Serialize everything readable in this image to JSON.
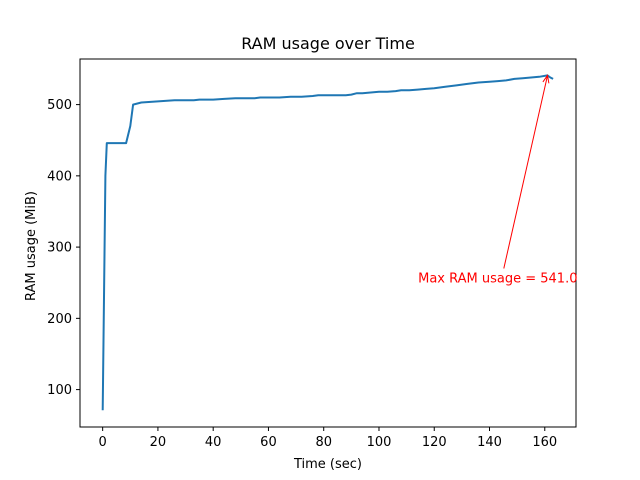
{
  "chart_data": {
    "type": "line",
    "title": "RAM usage over Time",
    "xlabel": "Time (sec)",
    "ylabel": "RAM usage (MiB)",
    "xlim": [
      -8.2,
      171.3
    ],
    "ylim": [
      47.5,
      564.0
    ],
    "xticks": [
      0,
      20,
      40,
      60,
      80,
      100,
      120,
      140,
      160
    ],
    "yticks": [
      100,
      200,
      300,
      400,
      500
    ],
    "grid": false,
    "line_color": "#1f77b4",
    "series": [
      {
        "x": [
          0,
          1,
          1.5,
          3,
          5,
          8,
          8.5,
          10,
          11,
          14,
          18,
          22,
          26,
          30,
          33,
          35,
          37,
          40,
          44,
          48,
          52,
          55,
          57,
          60,
          64,
          68,
          72,
          76,
          78,
          82,
          86,
          88,
          90,
          92,
          94,
          97,
          100,
          103,
          106,
          108,
          111,
          114,
          117,
          120,
          124,
          128,
          132,
          136,
          140,
          143,
          146,
          149,
          152,
          155,
          158,
          161,
          162,
          163
        ],
        "y": [
          71,
          400,
          446,
          446,
          446,
          446,
          446,
          470,
          500,
          503,
          504,
          505,
          506,
          506,
          506,
          507,
          507,
          507,
          508,
          509,
          509,
          509,
          510,
          510,
          510,
          511,
          511,
          512,
          513,
          513,
          513,
          513,
          514,
          516,
          516,
          517,
          518,
          518,
          519,
          520,
          520,
          521,
          522,
          523,
          525,
          527,
          529,
          531,
          532,
          533,
          534,
          536,
          537,
          538,
          539,
          541,
          538,
          536
        ]
      }
    ],
    "annotation": {
      "text": "Max RAM usage = 541.0",
      "color": "#ff0000",
      "point": [
        161,
        541
      ],
      "text_anchor": [
        143,
        270
      ]
    }
  }
}
